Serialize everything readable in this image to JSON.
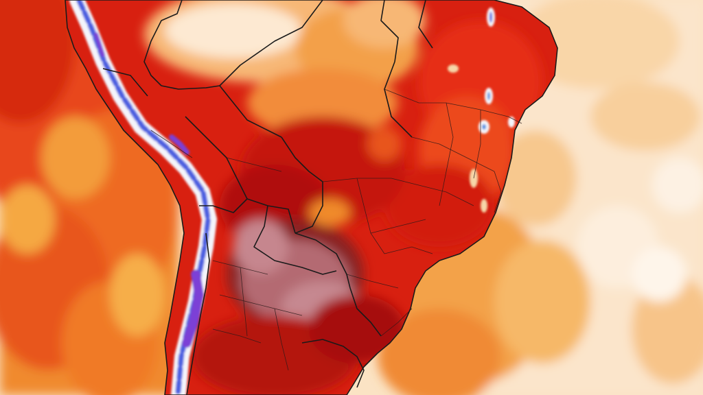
{
  "map": {
    "kind": "temperature-anomaly",
    "region": "South America",
    "palette": {
      "ocean_pale": "#fbe7cf",
      "ocean_light": "#f7c98f",
      "ocean_orange": "#f39a3c",
      "ocean_deep": "#ee5a1e",
      "land_hot": "#e0230f",
      "land_very_hot": "#c8150c",
      "land_extreme": "#a50e0e",
      "land_peak": "#7e1a1f",
      "land_mauve": "#b5717b",
      "land_pale": "#fff1e2",
      "andes_white": "#f2f4fb",
      "andes_blue": "#3c4fd6",
      "andes_violet": "#7b3fd6",
      "borders": "#1a1a1a"
    },
    "icons": [
      "country-borders",
      "state-borders",
      "coastline"
    ]
  }
}
